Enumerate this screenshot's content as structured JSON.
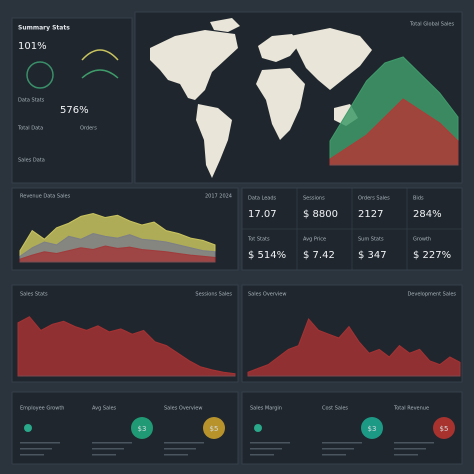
{
  "top_left": {
    "title": "Summary Stats",
    "big_value": "101%",
    "labels": [
      "Data Stats",
      "Total Data",
      "Orders",
      "Sales Data"
    ],
    "stat": "576%"
  },
  "map": {
    "title": "Total Global Sales"
  },
  "charts": [
    {
      "title": "Revenue Data Sales",
      "note": "2017 2024",
      "ylim": [
        0,
        100
      ],
      "series": [
        {
          "color": "#c9c45e",
          "values": [
            20,
            55,
            40,
            60,
            68,
            80,
            85,
            78,
            82,
            72,
            65,
            70,
            55,
            50,
            42,
            38,
            30
          ]
        },
        {
          "color": "#7d7f86",
          "values": [
            10,
            25,
            35,
            30,
            45,
            40,
            50,
            45,
            42,
            48,
            40,
            38,
            35,
            30,
            25,
            20,
            18
          ]
        },
        {
          "color": "#a13b3b",
          "values": [
            5,
            12,
            18,
            15,
            20,
            25,
            22,
            28,
            24,
            26,
            22,
            20,
            18,
            15,
            12,
            10,
            8
          ]
        }
      ]
    },
    {
      "title": "Sales Stats",
      "note": "Sessions Sales",
      "ylim": [
        0,
        100
      ],
      "series": [
        {
          "color": "#a53232",
          "values": [
            70,
            78,
            60,
            68,
            72,
            65,
            60,
            66,
            58,
            62,
            55,
            60,
            45,
            40,
            30,
            20,
            12,
            8,
            5,
            3
          ]
        }
      ]
    },
    {
      "title": "Sales Overview",
      "note": "Development Sales",
      "ylim": [
        0,
        100
      ],
      "series": [
        {
          "color": "#a53232",
          "values": [
            5,
            10,
            15,
            25,
            35,
            40,
            75,
            60,
            55,
            50,
            65,
            45,
            30,
            35,
            25,
            40,
            30,
            35,
            20,
            15,
            25,
            18
          ]
        }
      ]
    },
    {
      "ylim": [
        0,
        100
      ],
      "series": [
        {
          "color": "#3f9b6a",
          "values": [
            20,
            45,
            70,
            85,
            90,
            75,
            60,
            40
          ]
        },
        {
          "color": "#b23a36",
          "values": [
            5,
            15,
            25,
            40,
            55,
            45,
            35,
            20
          ]
        }
      ]
    }
  ],
  "kpis": [
    {
      "label": "Data Leads",
      "value": "17.07"
    },
    {
      "label": "Sessions",
      "value": "$ 8800"
    },
    {
      "label": "Orders Sales",
      "value": "2127"
    },
    {
      "label": "Bids",
      "value": "284%"
    },
    {
      "label": "Tot Stats",
      "value": "$ 514%"
    },
    {
      "label": "Avg Price",
      "value": "$ 7.42"
    },
    {
      "label": "Sum Stats",
      "value": "$ 347"
    },
    {
      "label": "Growth",
      "value": "$ 227%"
    }
  ],
  "widgets": [
    {
      "label": "Employee Growth",
      "color": "#2aa88a"
    },
    {
      "label": "Avg Sales",
      "value": "$3",
      "color": "#1f9a74"
    },
    {
      "label": "Sales Overview",
      "value": "$5",
      "color": "#b8932c"
    },
    {
      "label": "Sales Margin",
      "color": "#2aa88a"
    },
    {
      "label": "Cost Sales",
      "value": "$3",
      "color": "#1d9a86"
    },
    {
      "label": "Total Revenue",
      "value": "$5",
      "color": "#a8322e"
    }
  ]
}
